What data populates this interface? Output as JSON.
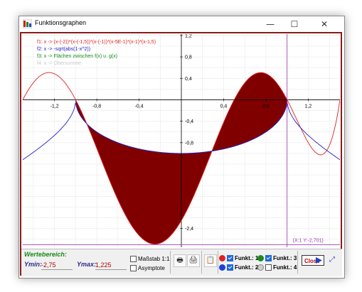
{
  "window": {
    "title": "Funktionsgraphen",
    "minimize_glyph": "—",
    "maximize_glyph": "☐",
    "close_glyph": "✕"
  },
  "plot": {
    "legend": [
      {
        "label": "f1:  x -> (x-(-2))*(x-(-1,5))*(x-(-1))*(x-5E-1)*(x-1)*(x-1,5)",
        "color": "#e02020"
      },
      {
        "label": "f2:  x -> -sqrt(abs(1-x^2))",
        "color": "#2020c8"
      },
      {
        "label": "f3:  x -> Flächen zwischen f(x) u. g(x)",
        "color": "#1a8a1a"
      },
      {
        "label": "f4:  x -> Obersumme",
        "color": "#c8c8c8"
      }
    ],
    "x_ticks": [
      {
        "v": -1.2,
        "label": "-1,2"
      },
      {
        "v": -0.8,
        "label": "-0,8"
      },
      {
        "v": -0.4,
        "label": "-0,4"
      },
      {
        "v": 0.4,
        "label": "0,4"
      },
      {
        "v": 0.8,
        "label": "0,8"
      },
      {
        "v": 1.2,
        "label": "1,2"
      }
    ],
    "y_ticks": [
      {
        "v": 1.2,
        "label": "1,2"
      },
      {
        "v": 0.8,
        "label": "0,8"
      },
      {
        "v": 0.4,
        "label": "0,4"
      },
      {
        "v": -0.4,
        "label": "-0,4"
      },
      {
        "v": -0.8,
        "label": "-0,8"
      },
      {
        "v": -2.4,
        "label": "-2,4"
      }
    ],
    "crosshair": {
      "x": 1,
      "y": -2.701
    },
    "crosshair_label": "(X:1 Y:-2,701)",
    "colors": {
      "f1": "#e02020",
      "f2": "#2020c8",
      "area": "#800000",
      "crosshair": "#9933aa",
      "grid": "#e6e6e6"
    }
  },
  "controls": {
    "wertebereich_label": "Wertebereich:",
    "ymin_label": "Ymin:",
    "ymin_value": "-2,75",
    "ymax_label": "Ymax:",
    "ymax_value": "1,225",
    "massstab_label": "Maßstab 1:1",
    "asymptote_label": "Asymptote",
    "funkt1_label": "Funkt.: 1",
    "funkt2_label": "Funkt.: 2",
    "funkt3_label": "Funkt.: 3",
    "funkt4_label": "Funkt.: 4",
    "close_label": "Close",
    "colors": {
      "f1": "#e02020",
      "f2": "#2020c8",
      "f3": "#1a8a1a",
      "f4": "#c8c8c8"
    }
  }
}
